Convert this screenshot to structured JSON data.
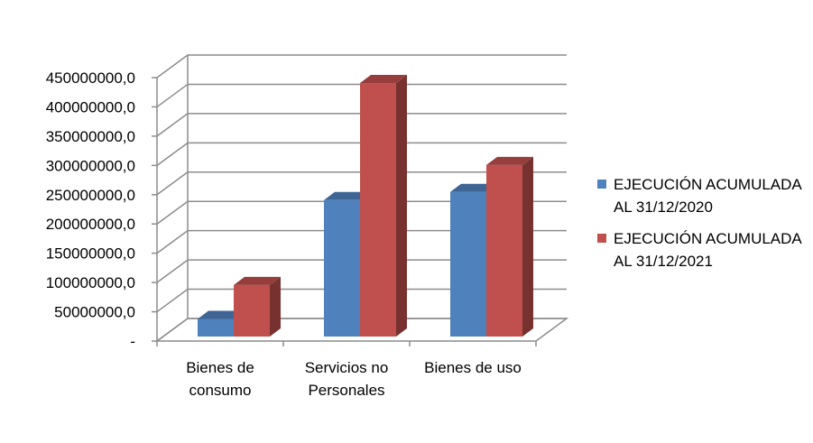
{
  "chart_data": {
    "type": "bar",
    "categories": [
      "Bienes de consumo",
      "Servicios no Personales",
      "Bienes de uso"
    ],
    "category_lines": [
      [
        "Bienes de",
        "consumo"
      ],
      [
        "Servicios no",
        "Personales"
      ],
      [
        "Bienes de uso"
      ]
    ],
    "series": [
      {
        "name": "EJECUCIÓN ACUMULADA AL 31/12/2020",
        "name_lines": [
          "EJECUCIÓN ACUMULADA",
          "AL 31/12/2020"
        ],
        "color": "#4f81bd",
        "values": [
          30000000,
          233000000,
          247000000
        ]
      },
      {
        "name": "EJECUCIÓN ACUMULADA AL 31/12/2021",
        "name_lines": [
          "EJECUCIÓN ACUMULADA",
          "AL 31/12/2021"
        ],
        "color": "#c0504d",
        "values": [
          88000000,
          433000000,
          293000000
        ]
      }
    ],
    "yticks": [
      "-",
      "50000000,0",
      "100000000,0",
      "150000000,0",
      "200000000,0",
      "250000000,0",
      "300000000,0",
      "350000000,0",
      "400000000,0",
      "450000000,0"
    ],
    "ylim": [
      0,
      450000000
    ],
    "title": "",
    "xlabel": "",
    "ylabel": "",
    "grid": true,
    "legend_position": "right",
    "three_d": true
  }
}
